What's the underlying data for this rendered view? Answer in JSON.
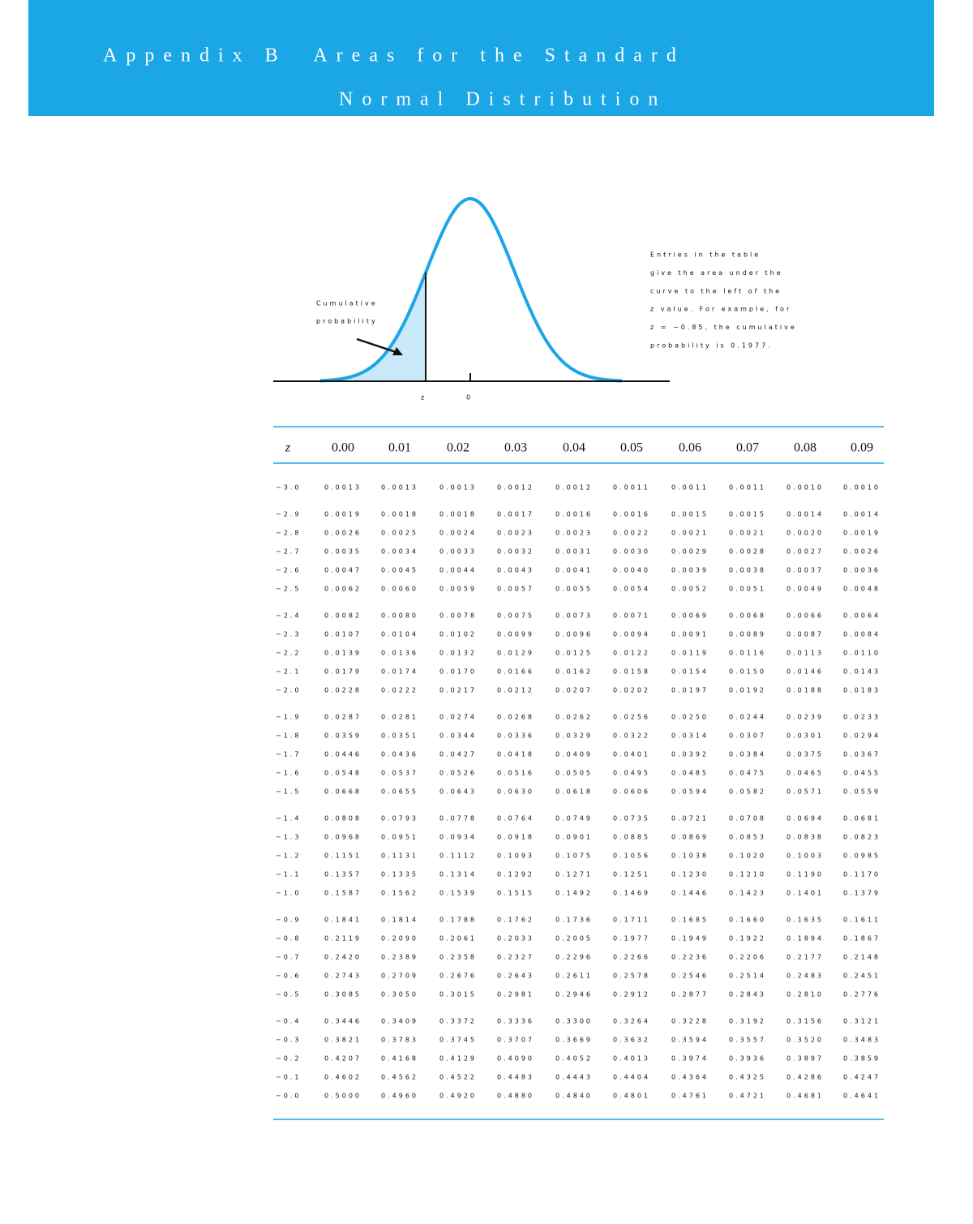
{
  "header": {
    "title_line1": "Appendix B  Areas for the Standard",
    "title_line2": "Normal Distribution"
  },
  "figure": {
    "cumulative_label_1": "Cumulative",
    "cumulative_label_2": "probability",
    "z_label": "z",
    "zero_label": "0",
    "note": [
      "Entries in the table",
      "give the area under the",
      "curve to the left of the",
      "z value. For example, for",
      "z = −0.85, the cumulative",
      "probability is 0.1977."
    ]
  },
  "table": {
    "header": [
      "z",
      "0.00",
      "0.01",
      "0.02",
      "0.03",
      "0.04",
      "0.05",
      "0.06",
      "0.07",
      "0.08",
      "0.09"
    ],
    "rows": [
      [
        "−3.0",
        "0.0013",
        "0.0013",
        "0.0013",
        "0.0012",
        "0.0012",
        "0.0011",
        "0.0011",
        "0.0011",
        "0.0010",
        "0.0010"
      ],
      [
        "−2.9",
        "0.0019",
        "0.0018",
        "0.0018",
        "0.0017",
        "0.0016",
        "0.0016",
        "0.0015",
        "0.0015",
        "0.0014",
        "0.0014"
      ],
      [
        "−2.8",
        "0.0026",
        "0.0025",
        "0.0024",
        "0.0023",
        "0.0023",
        "0.0022",
        "0.0021",
        "0.0021",
        "0.0020",
        "0.0019"
      ],
      [
        "−2.7",
        "0.0035",
        "0.0034",
        "0.0033",
        "0.0032",
        "0.0031",
        "0.0030",
        "0.0029",
        "0.0028",
        "0.0027",
        "0.0026"
      ],
      [
        "−2.6",
        "0.0047",
        "0.0045",
        "0.0044",
        "0.0043",
        "0.0041",
        "0.0040",
        "0.0039",
        "0.0038",
        "0.0037",
        "0.0036"
      ],
      [
        "−2.5",
        "0.0062",
        "0.0060",
        "0.0059",
        "0.0057",
        "0.0055",
        "0.0054",
        "0.0052",
        "0.0051",
        "0.0049",
        "0.0048"
      ],
      [
        "−2.4",
        "0.0082",
        "0.0080",
        "0.0078",
        "0.0075",
        "0.0073",
        "0.0071",
        "0.0069",
        "0.0068",
        "0.0066",
        "0.0064"
      ],
      [
        "−2.3",
        "0.0107",
        "0.0104",
        "0.0102",
        "0.0099",
        "0.0096",
        "0.0094",
        "0.0091",
        "0.0089",
        "0.0087",
        "0.0084"
      ],
      [
        "−2.2",
        "0.0139",
        "0.0136",
        "0.0132",
        "0.0129",
        "0.0125",
        "0.0122",
        "0.0119",
        "0.0116",
        "0.0113",
        "0.0110"
      ],
      [
        "−2.1",
        "0.0179",
        "0.0174",
        "0.0170",
        "0.0166",
        "0.0162",
        "0.0158",
        "0.0154",
        "0.0150",
        "0.0146",
        "0.0143"
      ],
      [
        "−2.0",
        "0.0228",
        "0.0222",
        "0.0217",
        "0.0212",
        "0.0207",
        "0.0202",
        "0.0197",
        "0.0192",
        "0.0188",
        "0.0183"
      ],
      [
        "−1.9",
        "0.0287",
        "0.0281",
        "0.0274",
        "0.0268",
        "0.0262",
        "0.0256",
        "0.0250",
        "0.0244",
        "0.0239",
        "0.0233"
      ],
      [
        "−1.8",
        "0.0359",
        "0.0351",
        "0.0344",
        "0.0336",
        "0.0329",
        "0.0322",
        "0.0314",
        "0.0307",
        "0.0301",
        "0.0294"
      ],
      [
        "−1.7",
        "0.0446",
        "0.0436",
        "0.0427",
        "0.0418",
        "0.0409",
        "0.0401",
        "0.0392",
        "0.0384",
        "0.0375",
        "0.0367"
      ],
      [
        "−1.6",
        "0.0548",
        "0.0537",
        "0.0526",
        "0.0516",
        "0.0505",
        "0.0495",
        "0.0485",
        "0.0475",
        "0.0465",
        "0.0455"
      ],
      [
        "−1.5",
        "0.0668",
        "0.0655",
        "0.0643",
        "0.0630",
        "0.0618",
        "0.0606",
        "0.0594",
        "0.0582",
        "0.0571",
        "0.0559"
      ],
      [
        "−1.4",
        "0.0808",
        "0.0793",
        "0.0778",
        "0.0764",
        "0.0749",
        "0.0735",
        "0.0721",
        "0.0708",
        "0.0694",
        "0.0681"
      ],
      [
        "−1.3",
        "0.0968",
        "0.0951",
        "0.0934",
        "0.0918",
        "0.0901",
        "0.0885",
        "0.0869",
        "0.0853",
        "0.0838",
        "0.0823"
      ],
      [
        "−1.2",
        "0.1151",
        "0.1131",
        "0.1112",
        "0.1093",
        "0.1075",
        "0.1056",
        "0.1038",
        "0.1020",
        "0.1003",
        "0.0985"
      ],
      [
        "−1.1",
        "0.1357",
        "0.1335",
        "0.1314",
        "0.1292",
        "0.1271",
        "0.1251",
        "0.1230",
        "0.1210",
        "0.1190",
        "0.1170"
      ],
      [
        "−1.0",
        "0.1587",
        "0.1562",
        "0.1539",
        "0.1515",
        "0.1492",
        "0.1469",
        "0.1446",
        "0.1423",
        "0.1401",
        "0.1379"
      ],
      [
        "−0.9",
        "0.1841",
        "0.1814",
        "0.1788",
        "0.1762",
        "0.1736",
        "0.1711",
        "0.1685",
        "0.1660",
        "0.1635",
        "0.1611"
      ],
      [
        "−0.8",
        "0.2119",
        "0.2090",
        "0.2061",
        "0.2033",
        "0.2005",
        "0.1977",
        "0.1949",
        "0.1922",
        "0.1894",
        "0.1867"
      ],
      [
        "−0.7",
        "0.2420",
        "0.2389",
        "0.2358",
        "0.2327",
        "0.2296",
        "0.2266",
        "0.2236",
        "0.2206",
        "0.2177",
        "0.2148"
      ],
      [
        "−0.6",
        "0.2743",
        "0.2709",
        "0.2676",
        "0.2643",
        "0.2611",
        "0.2578",
        "0.2546",
        "0.2514",
        "0.2483",
        "0.2451"
      ],
      [
        "−0.5",
        "0.3085",
        "0.3050",
        "0.3015",
        "0.2981",
        "0.2946",
        "0.2912",
        "0.2877",
        "0.2843",
        "0.2810",
        "0.2776"
      ],
      [
        "−0.4",
        "0.3446",
        "0.3409",
        "0.3372",
        "0.3336",
        "0.3300",
        "0.3264",
        "0.3228",
        "0.3192",
        "0.3156",
        "0.3121"
      ],
      [
        "−0.3",
        "0.3821",
        "0.3783",
        "0.3745",
        "0.3707",
        "0.3669",
        "0.3632",
        "0.3594",
        "0.3557",
        "0.3520",
        "0.3483"
      ],
      [
        "−0.2",
        "0.4207",
        "0.4168",
        "0.4129",
        "0.4090",
        "0.4052",
        "0.4013",
        "0.3974",
        "0.3936",
        "0.3897",
        "0.3859"
      ],
      [
        "−0.1",
        "0.4602",
        "0.4562",
        "0.4522",
        "0.4483",
        "0.4443",
        "0.4404",
        "0.4364",
        "0.4325",
        "0.4286",
        "0.4247"
      ],
      [
        "−0.0",
        "0.5000",
        "0.4960",
        "0.4920",
        "0.4880",
        "0.4840",
        "0.4801",
        "0.4761",
        "0.4721",
        "0.4681",
        "0.4641"
      ]
    ]
  }
}
